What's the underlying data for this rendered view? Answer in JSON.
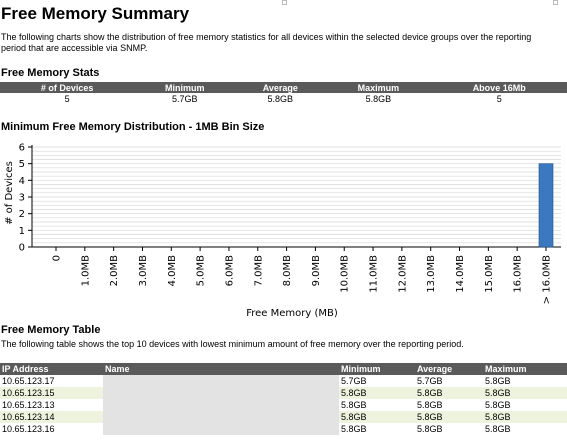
{
  "page": {
    "title": "Free Memory Summary",
    "intro": "The following charts show the distribution of free memory statistics for all devices within the selected device groups over the reporting period that are accessible via SNMP."
  },
  "stats": {
    "title": "Free Memory Stats",
    "headers": [
      "# of Devices",
      "Minimum",
      "Average",
      "Maximum",
      "Above 16Mb"
    ],
    "values": [
      "5",
      "5.7GB",
      "5.8GB",
      "5.8GB",
      "5"
    ]
  },
  "chart": {
    "title": "Minimum Free Memory Distribution - 1MB Bin Size",
    "xlabel": "Free Memory (MB)",
    "ylabel": "# of Devices"
  },
  "chart_data": {
    "type": "bar",
    "title": "Minimum Free Memory Distribution - 1MB Bin Size",
    "xlabel": "Free Memory (MB)",
    "ylabel": "# of Devices",
    "categories": [
      "0",
      "1.0MB",
      "2.0MB",
      "3.0MB",
      "4.0MB",
      "5.0MB",
      "6.0MB",
      "7.0MB",
      "8.0MB",
      "9.0MB",
      "10.0MB",
      "11.0MB",
      "12.0MB",
      "13.0MB",
      "14.0MB",
      "15.0MB",
      "16.0MB",
      "> 16.0MB"
    ],
    "values": [
      0,
      0,
      0,
      0,
      0,
      0,
      0,
      0,
      0,
      0,
      0,
      0,
      0,
      0,
      0,
      0,
      0,
      5
    ],
    "yticks": [
      "0",
      "1",
      "2",
      "3",
      "4",
      "5",
      "6"
    ],
    "ylim": [
      0,
      6
    ],
    "grid": true,
    "bar_color": "#3a78c0"
  },
  "memtable": {
    "title": "Free Memory Table",
    "description": "The following table shows the top 10 devices with lowest minimum amount of free memory over the reporting period.",
    "headers": {
      "ip": "IP Address",
      "name": "Name",
      "min": "Minimum",
      "avg": "Average",
      "max": "Maximum"
    },
    "rows": [
      {
        "ip": "10.65.123.17",
        "name": "",
        "min": "5.7GB",
        "avg": "5.7GB",
        "max": "5.8GB"
      },
      {
        "ip": "10.65.123.15",
        "name": "",
        "min": "5.8GB",
        "avg": "5.8GB",
        "max": "5.8GB"
      },
      {
        "ip": "10.65.123.13",
        "name": "",
        "min": "5.8GB",
        "avg": "5.8GB",
        "max": "5.8GB"
      },
      {
        "ip": "10.65.123.14",
        "name": "",
        "min": "5.8GB",
        "avg": "5.8GB",
        "max": "5.8GB"
      },
      {
        "ip": "10.65.123.16",
        "name": "",
        "min": "5.8GB",
        "avg": "5.8GB",
        "max": "5.8GB"
      }
    ]
  }
}
